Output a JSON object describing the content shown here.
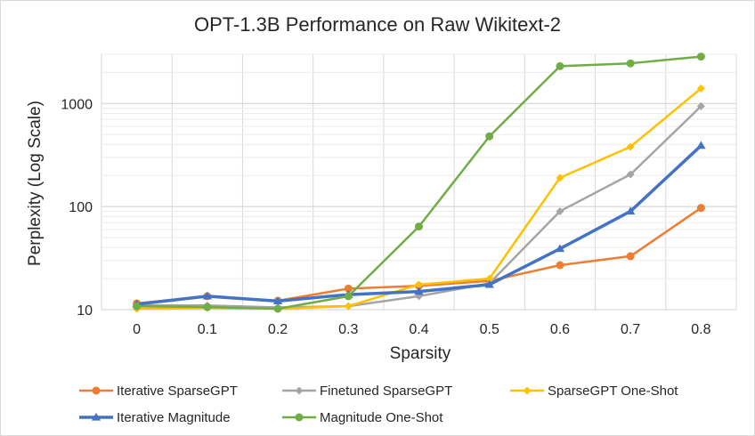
{
  "chart_data": {
    "type": "line",
    "title": "OPT-1.3B Performance on Raw Wikitext-2",
    "xlabel": "Sparsity",
    "ylabel": "Perplexity (Log Scale)",
    "yscale": "log",
    "ylim": [
      10,
      3000
    ],
    "x": [
      0,
      0.1,
      0.2,
      0.3,
      0.4,
      0.5,
      0.6,
      0.7,
      0.8
    ],
    "x_tick_labels": [
      "0",
      "0.1",
      "0.2",
      "0.3",
      "0.4",
      "0.5",
      "0.6",
      "0.7",
      "0.8"
    ],
    "y_tick_values": [
      10,
      100,
      1000
    ],
    "y_tick_labels": [
      "10",
      "100",
      "1000"
    ],
    "grid": true,
    "legend_position": "bottom",
    "series": [
      {
        "name": "Iterative SparseGPT",
        "color": "#ED7D31",
        "marker": "circle",
        "values": [
          11.5,
          13.5,
          12.2,
          16,
          17,
          19,
          27,
          33,
          97
        ]
      },
      {
        "name": "Finetuned SparseGPT",
        "color": "#A5A5A5",
        "marker": "diamond",
        "values": [
          11,
          11,
          10.5,
          10.8,
          13.5,
          18,
          90,
          205,
          940
        ]
      },
      {
        "name": "SparseGPT One-Shot",
        "color": "#FFC000",
        "marker": "diamond",
        "values": [
          10.2,
          10.4,
          10.2,
          10.8,
          17.5,
          20,
          190,
          380,
          1400
        ]
      },
      {
        "name": "Iterative Magnitude",
        "color": "#4472C4",
        "marker": "triangle",
        "values": [
          11.3,
          13.5,
          12.1,
          14,
          15,
          17.5,
          39,
          90,
          390
        ]
      },
      {
        "name": "Magnitude One-Shot",
        "color": "#70AD47",
        "marker": "circle",
        "values": [
          10.8,
          10.6,
          10.2,
          13.5,
          64,
          480,
          2300,
          2450,
          2850
        ]
      }
    ]
  }
}
